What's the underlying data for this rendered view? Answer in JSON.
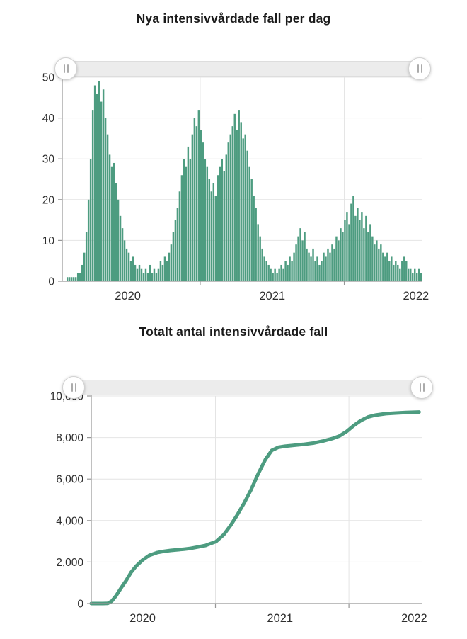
{
  "page": {
    "background": "#ffffff"
  },
  "charts": [
    {
      "title": "Nya intensivvårdade fall per dag",
      "range_slider": {
        "left_grip_icon": "drag-grip-icon",
        "right_grip_icon": "drag-grip-icon"
      },
      "chart_data": {
        "type": "bar",
        "title": "Nya intensivvårdade fall per dag",
        "color": "#4d9c80",
        "grid": true,
        "ylim": [
          0,
          50
        ],
        "y_ticks": [
          0,
          10,
          20,
          30,
          40,
          50
        ],
        "y_tick_labels": [
          "0",
          "10",
          "20",
          "30",
          "40",
          "50"
        ],
        "x_year_boundaries": [
          0.383,
          0.783
        ],
        "x_labels": [
          {
            "text": "2020",
            "f": 0.182
          },
          {
            "text": "2021",
            "f": 0.583
          },
          {
            "text": "2022",
            "f": 0.982
          }
        ],
        "x_range_note": "daily bars, early 2020 through mid 2022",
        "values": [
          0,
          0,
          1,
          1,
          1,
          1,
          1,
          2,
          2,
          4,
          7,
          12,
          20,
          30,
          42,
          48,
          46,
          49,
          44,
          47,
          40,
          36,
          31,
          28,
          29,
          24,
          20,
          16,
          13,
          10,
          8,
          7,
          5,
          6,
          4,
          3,
          4,
          3,
          2,
          3,
          2,
          4,
          2,
          3,
          2,
          3,
          5,
          4,
          6,
          5,
          7,
          9,
          12,
          15,
          18,
          22,
          26,
          30,
          28,
          33,
          30,
          36,
          40,
          38,
          42,
          37,
          34,
          30,
          28,
          25,
          22,
          24,
          21,
          26,
          28,
          30,
          27,
          31,
          34,
          36,
          38,
          41,
          37,
          42,
          39,
          35,
          36,
          32,
          28,
          25,
          21,
          18,
          14,
          11,
          8,
          6,
          5,
          4,
          3,
          2,
          3,
          2,
          3,
          4,
          3,
          5,
          4,
          6,
          5,
          7,
          9,
          11,
          13,
          10,
          12,
          8,
          7,
          6,
          8,
          5,
          6,
          4,
          5,
          7,
          6,
          8,
          7,
          9,
          8,
          11,
          10,
          13,
          12,
          15,
          17,
          14,
          19,
          21,
          16,
          18,
          15,
          17,
          13,
          16,
          12,
          14,
          11,
          9,
          10,
          8,
          9,
          7,
          6,
          7,
          5,
          6,
          4,
          5,
          4,
          3,
          5,
          6,
          5,
          3,
          3,
          2,
          3,
          2,
          3,
          2
        ]
      }
    },
    {
      "title": "Totalt antal intensivvårdade fall",
      "range_slider": {
        "left_grip_icon": "drag-grip-icon",
        "right_grip_icon": "drag-grip-icon"
      },
      "chart_data": {
        "type": "line",
        "title": "Totalt antal intensivvårdade fall",
        "color": "#4d9c80",
        "grid": true,
        "ylim": [
          0,
          10000
        ],
        "y_ticks": [
          0,
          2000,
          4000,
          6000,
          8000,
          10000
        ],
        "y_tick_labels": [
          "0",
          "2,000",
          "4,000",
          "6,000",
          "8,000",
          "10,000"
        ],
        "x_year_boundaries": [
          0.375,
          0.778
        ],
        "x_labels": [
          {
            "text": "2020",
            "f": 0.155
          },
          {
            "text": "2021",
            "f": 0.57
          },
          {
            "text": "2022",
            "f": 0.975
          }
        ],
        "points": [
          [
            0.0,
            0
          ],
          [
            0.035,
            0
          ],
          [
            0.05,
            10
          ],
          [
            0.062,
            120
          ],
          [
            0.075,
            380
          ],
          [
            0.09,
            750
          ],
          [
            0.105,
            1100
          ],
          [
            0.12,
            1500
          ],
          [
            0.135,
            1800
          ],
          [
            0.155,
            2100
          ],
          [
            0.175,
            2320
          ],
          [
            0.2,
            2460
          ],
          [
            0.22,
            2520
          ],
          [
            0.24,
            2560
          ],
          [
            0.26,
            2590
          ],
          [
            0.28,
            2620
          ],
          [
            0.3,
            2660
          ],
          [
            0.32,
            2720
          ],
          [
            0.345,
            2800
          ],
          [
            0.36,
            2890
          ],
          [
            0.376,
            2980
          ],
          [
            0.4,
            3320
          ],
          [
            0.42,
            3750
          ],
          [
            0.44,
            4250
          ],
          [
            0.462,
            4850
          ],
          [
            0.483,
            5500
          ],
          [
            0.504,
            6250
          ],
          [
            0.526,
            6950
          ],
          [
            0.545,
            7380
          ],
          [
            0.565,
            7530
          ],
          [
            0.585,
            7580
          ],
          [
            0.61,
            7620
          ],
          [
            0.64,
            7670
          ],
          [
            0.67,
            7730
          ],
          [
            0.7,
            7830
          ],
          [
            0.73,
            7960
          ],
          [
            0.75,
            8080
          ],
          [
            0.77,
            8280
          ],
          [
            0.793,
            8580
          ],
          [
            0.814,
            8820
          ],
          [
            0.836,
            8990
          ],
          [
            0.857,
            9080
          ],
          [
            0.89,
            9150
          ],
          [
            0.92,
            9180
          ],
          [
            0.95,
            9205
          ],
          [
            0.99,
            9230
          ]
        ]
      }
    }
  ]
}
